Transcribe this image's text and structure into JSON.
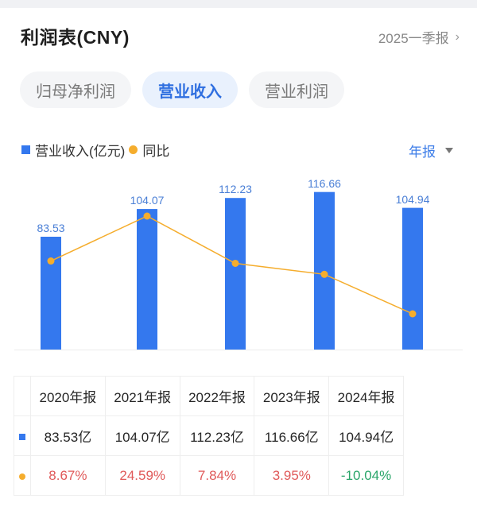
{
  "header": {
    "title": "利润表(CNY)",
    "period": "2025一季报",
    "chevron": "›"
  },
  "tabs": [
    {
      "label": "归母净利润",
      "active": false
    },
    {
      "label": "营业收入",
      "active": true
    },
    {
      "label": "营业利润",
      "active": false
    }
  ],
  "legend": {
    "bar_label": "营业收入(亿元)",
    "line_label": "同比"
  },
  "frequency": {
    "label": "年报",
    "icon": "caret-down-icon"
  },
  "colors": {
    "bar": "#3478ee",
    "line": "#f5ad2d",
    "positive": "#e05a5a",
    "negative": "#2aa56a",
    "accent": "#2f6fe0"
  },
  "chart_data": {
    "type": "bar",
    "title": "营业收入(亿元)",
    "categories": [
      "2020年报",
      "2021年报",
      "2022年报",
      "2023年报",
      "2024年报"
    ],
    "series": [
      {
        "name": "营业收入(亿元)",
        "type": "bar",
        "values": [
          83.53,
          104.07,
          112.23,
          116.66,
          104.94
        ]
      },
      {
        "name": "同比",
        "type": "line",
        "values": [
          8.67,
          24.59,
          7.84,
          3.95,
          -10.04
        ],
        "unit": "%"
      }
    ],
    "xlabel": "",
    "ylabel": "",
    "grid": false,
    "legend_position": "top-left"
  },
  "chart": {
    "bar_labels": [
      "83.53",
      "104.07",
      "112.23",
      "116.66",
      "104.94"
    ]
  },
  "table": {
    "headers": [
      "2020年报",
      "2021年报",
      "2022年报",
      "2023年报",
      "2024年报"
    ],
    "revenue": [
      "83.53亿",
      "104.07亿",
      "112.23亿",
      "116.66亿",
      "104.94亿"
    ],
    "yoy": [
      "8.67%",
      "24.59%",
      "7.84%",
      "3.95%",
      "-10.04%"
    ]
  }
}
